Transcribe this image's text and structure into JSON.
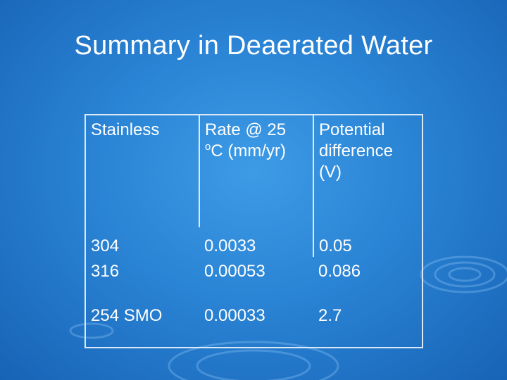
{
  "header": {
    "title": "Summary in Deaerated Water"
  },
  "table": {
    "header": [
      "Stainless",
      {
        "before": "Rate @ 25 ",
        "sup": "o",
        "after": "C (mm/yr)"
      },
      "Potential difference (V)"
    ],
    "rows": [
      [
        "304",
        "0.0033",
        "0.05"
      ],
      [
        "316",
        "0.00053",
        "0.086"
      ],
      [
        "254 SMO",
        "0.00033",
        "2.7"
      ]
    ]
  }
}
